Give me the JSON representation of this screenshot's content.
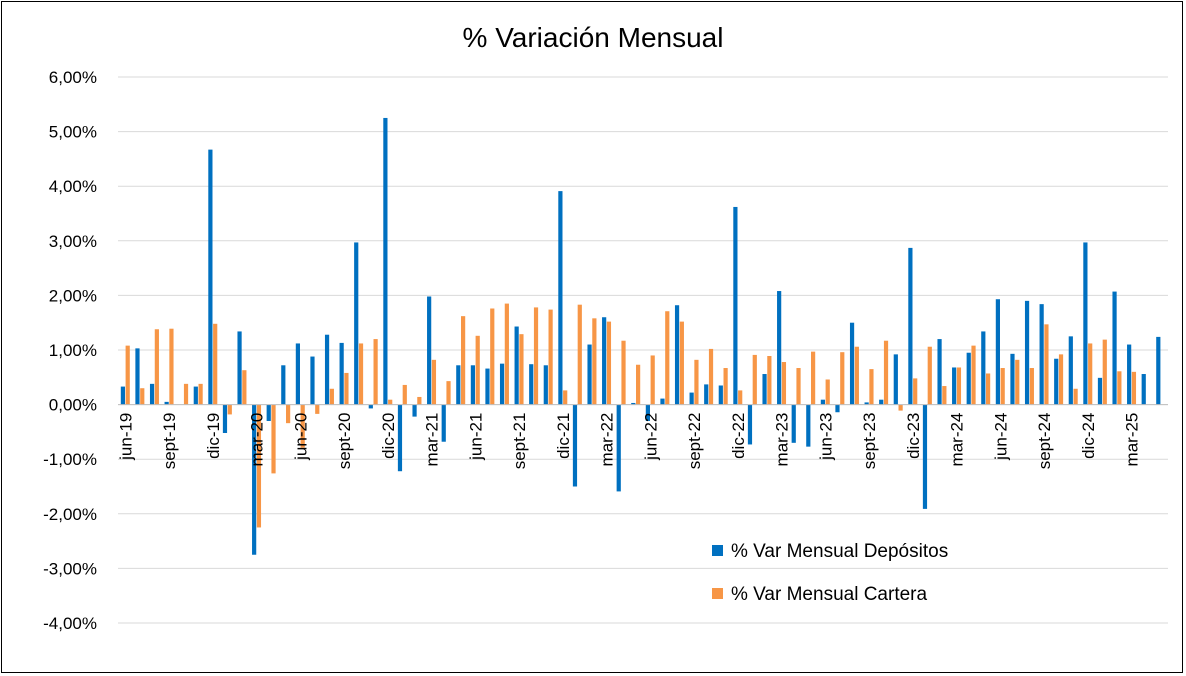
{
  "chart_data": {
    "type": "bar",
    "title": "% Variación Mensual",
    "xlabel": "",
    "ylabel": "",
    "ylim": [
      -4,
      6
    ],
    "yticks": [
      6,
      5,
      4,
      3,
      2,
      1,
      0,
      -1,
      -2,
      -3,
      -4
    ],
    "ytick_labels": [
      "6,00%",
      "5,00%",
      "4,00%",
      "3,00%",
      "2,00%",
      "1,00%",
      "0,00%",
      "-1,00%",
      "-2,00%",
      "-3,00%",
      "-4,00%"
    ],
    "grid": true,
    "legend_position": "bottom-right",
    "categories": [
      "jun-19",
      "jul-19",
      "ago-19",
      "sept-19",
      "oct-19",
      "nov-19",
      "dic-19",
      "ene-20",
      "feb-20",
      "mar-20",
      "abr-20",
      "may-20",
      "jun-20",
      "jul-20",
      "ago-20",
      "sept-20",
      "oct-20",
      "nov-20",
      "dic-20",
      "ene-21",
      "feb-21",
      "mar-21",
      "abr-21",
      "may-21",
      "jun-21",
      "jul-21",
      "ago-21",
      "sept-21",
      "oct-21",
      "nov-21",
      "dic-21",
      "ene-22",
      "feb-22",
      "mar-22",
      "abr-22",
      "may-22",
      "jun-22",
      "jul-22",
      "ago-22",
      "sept-22",
      "oct-22",
      "nov-22",
      "dic-22",
      "ene-23",
      "feb-23",
      "mar-23",
      "abr-23",
      "may-23",
      "jun-23",
      "jul-23",
      "ago-23",
      "sept-23",
      "oct-23",
      "nov-23",
      "dic-23",
      "ene-24",
      "feb-24",
      "mar-24",
      "abr-24",
      "may-24",
      "jun-24",
      "jul-24",
      "ago-24",
      "sept-24",
      "oct-24",
      "nov-24",
      "dic-24",
      "ene-25",
      "feb-25",
      "mar-25",
      "abr-25",
      "may-25"
    ],
    "visible_tick_labels": [
      "jun-19",
      "sept-19",
      "dic-19",
      "mar-20",
      "jun-20",
      "sept-20",
      "dic-20",
      "mar-21",
      "jun-21",
      "sept-21",
      "dic-21",
      "mar-22",
      "jun-22",
      "sept-22",
      "dic-22",
      "mar-23",
      "jun-23",
      "sept-23",
      "dic-23",
      "mar-24",
      "jun-24",
      "sept-24",
      "dic-24",
      "mar-25"
    ],
    "series": [
      {
        "name": "% Var Mensual Depósitos",
        "color": "#0070C0",
        "values": [
          0.33,
          1.03,
          0.38,
          0.05,
          0.0,
          0.33,
          4.67,
          -0.52,
          1.34,
          -2.75,
          -0.3,
          0.72,
          1.12,
          0.88,
          1.28,
          1.13,
          2.97,
          -0.07,
          5.25,
          -1.22,
          -0.22,
          1.98,
          -0.68,
          0.72,
          0.72,
          0.66,
          0.75,
          1.43,
          0.74,
          0.72,
          3.91,
          -1.5,
          1.1,
          1.6,
          -1.59,
          0.03,
          -0.3,
          0.11,
          1.82,
          0.22,
          0.37,
          0.35,
          3.62,
          -0.73,
          0.56,
          2.08,
          -0.7,
          -0.77,
          0.09,
          -0.14,
          1.5,
          0.04,
          0.09,
          0.92,
          2.87,
          -1.91,
          1.2,
          0.68,
          0.95,
          1.34,
          1.93,
          0.93,
          1.9,
          1.84,
          0.84,
          1.25,
          2.97,
          0.49,
          2.07,
          1.1,
          0.56,
          1.24
        ]
      },
      {
        "name": "% Var Mensual Cartera",
        "color": "#F79646",
        "values": [
          1.08,
          0.3,
          1.38,
          1.39,
          0.38,
          0.38,
          1.48,
          -0.18,
          0.63,
          -2.25,
          -1.26,
          -0.34,
          -0.79,
          -0.17,
          0.29,
          0.58,
          1.12,
          1.2,
          0.09,
          0.36,
          0.14,
          0.82,
          0.43,
          1.62,
          1.26,
          1.76,
          1.85,
          1.29,
          1.78,
          1.74,
          0.26,
          1.83,
          1.58,
          1.52,
          1.17,
          0.73,
          0.9,
          1.71,
          1.52,
          0.82,
          1.02,
          0.67,
          0.26,
          0.91,
          0.89,
          0.78,
          0.67,
          0.97,
          0.46,
          0.96,
          1.06,
          0.65,
          1.17,
          -0.11,
          0.48,
          1.06,
          0.34,
          0.68,
          1.08,
          0.57,
          0.67,
          0.82,
          0.67,
          1.47,
          0.92,
          0.29,
          1.12,
          1.19,
          0.61,
          0.6,
          0.0,
          0.0
        ]
      }
    ]
  }
}
